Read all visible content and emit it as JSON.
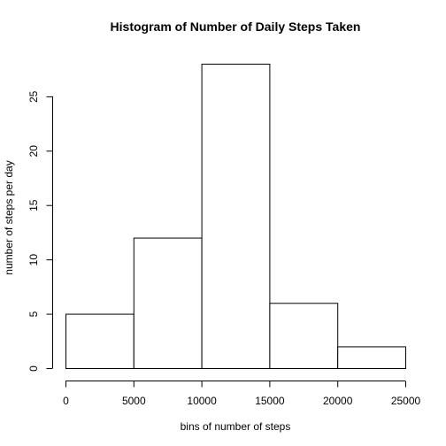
{
  "chart_data": {
    "type": "bar",
    "title": "Histogram of Number of Daily Steps Taken",
    "xlabel": "bins of number of steps",
    "ylabel": "number of steps per day",
    "bins": [
      {
        "from": 0,
        "to": 5000,
        "count": 5
      },
      {
        "from": 5000,
        "to": 10000,
        "count": 12
      },
      {
        "from": 10000,
        "to": 15000,
        "count": 28
      },
      {
        "from": 15000,
        "to": 20000,
        "count": 6
      },
      {
        "from": 20000,
        "to": 25000,
        "count": 2
      }
    ],
    "xlim": [
      0,
      25000
    ],
    "ylim": [
      0,
      28
    ],
    "x_ticks": [
      "0",
      "5000",
      "10000",
      "15000",
      "20000",
      "25000"
    ],
    "y_ticks": [
      "0",
      "5",
      "10",
      "15",
      "20",
      "25"
    ],
    "grid": false,
    "legend": "none"
  }
}
